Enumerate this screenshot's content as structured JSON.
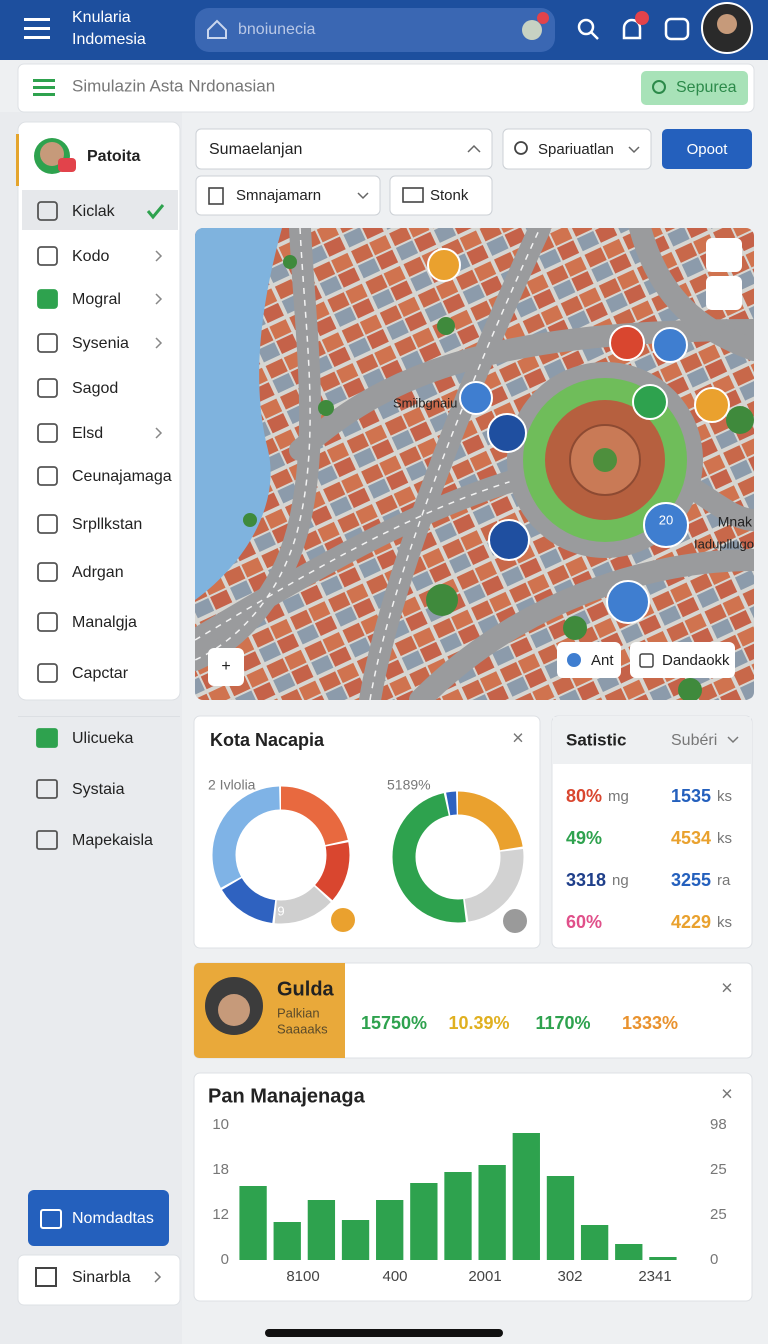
{
  "header": {
    "app_name": [
      "Knularia",
      "Indomesia"
    ],
    "search": "bnoiunecia"
  },
  "toolbar": {
    "title": "Simulazin Asta Nrdonasian",
    "button": "Sepurea"
  },
  "sidebar": {
    "profile": "Patoita",
    "items": [
      "Kiclak",
      "Kodo",
      "Mogral",
      "Sysenia",
      "Sagod",
      "Elsd",
      "Ceunajamaga",
      "Srpllkstan",
      "Adrgan",
      "Manalgja",
      "Capctar"
    ],
    "group2": [
      "Ulicueka",
      "Systaia",
      "Mapekaisla"
    ],
    "button": "Nomdadtas",
    "bottom": "Sinarbla"
  },
  "filters": {
    "dropdown1": "Sumaelanjan",
    "dropdown2": "Spariuatlan",
    "button": "Opoot",
    "dropdown3": "Smnajamarn",
    "button2": "Stonk"
  },
  "map": {
    "labels": [
      "Smiibgnaiu",
      "Mnak",
      "Iadupllugo"
    ],
    "marker": "20",
    "buttons": [
      "Ant",
      "Dandaokk"
    ]
  },
  "donut_card": {
    "title": "Kota Nacapia",
    "donuts": [
      {
        "label": "2 Ivlolia",
        "center_label": "9",
        "segments": [
          {
            "color": "#e8693f",
            "value": 22
          },
          {
            "color": "#d9462f",
            "value": 15
          },
          {
            "color": "#cfcfcf",
            "value": 15
          },
          {
            "color": "#2f62c0",
            "value": 15
          },
          {
            "color": "#7fb3e6",
            "value": 33
          }
        ]
      },
      {
        "label": "5189%",
        "segments": [
          {
            "color": "#eaa12e",
            "value": 23
          },
          {
            "color": "#d2d2d2",
            "value": 25
          },
          {
            "color": "#2ea24e",
            "value": 49
          },
          {
            "color": "#2f62c0",
            "value": 3
          }
        ]
      }
    ]
  },
  "stats": {
    "title": "Satistic",
    "dropdown": "Subéri",
    "rows": [
      {
        "left": "80%",
        "left_unit": "mg",
        "right": "1535",
        "right_unit": "ks"
      },
      {
        "left": "49%",
        "right": "4534",
        "right_unit": "ks"
      },
      {
        "left": "3318",
        "left_unit": "ng",
        "right": "3255",
        "right_unit": "ra"
      },
      {
        "left": "60%",
        "right": "4229",
        "right_unit": "ks"
      }
    ]
  },
  "banner": {
    "name": "Gulda",
    "lines": [
      "Palkian",
      "Saaaaks"
    ],
    "values": [
      "15750%",
      "10.39%",
      "1170%",
      "1333%"
    ]
  },
  "bar_chart": {
    "type": "bar",
    "title": "Pan Manajenaga",
    "color": "#2ea24e",
    "values": [
      74,
      38,
      60,
      40,
      60,
      77,
      88,
      95,
      127,
      84,
      35,
      16,
      3
    ],
    "ylim": [
      0,
      135
    ],
    "left_labels": [
      "10",
      "18",
      "12",
      "0"
    ],
    "right_labels": [
      "98",
      "25",
      "25",
      "0"
    ],
    "x_labels": [
      "8100",
      "400",
      "2001",
      "302",
      "2341"
    ]
  }
}
